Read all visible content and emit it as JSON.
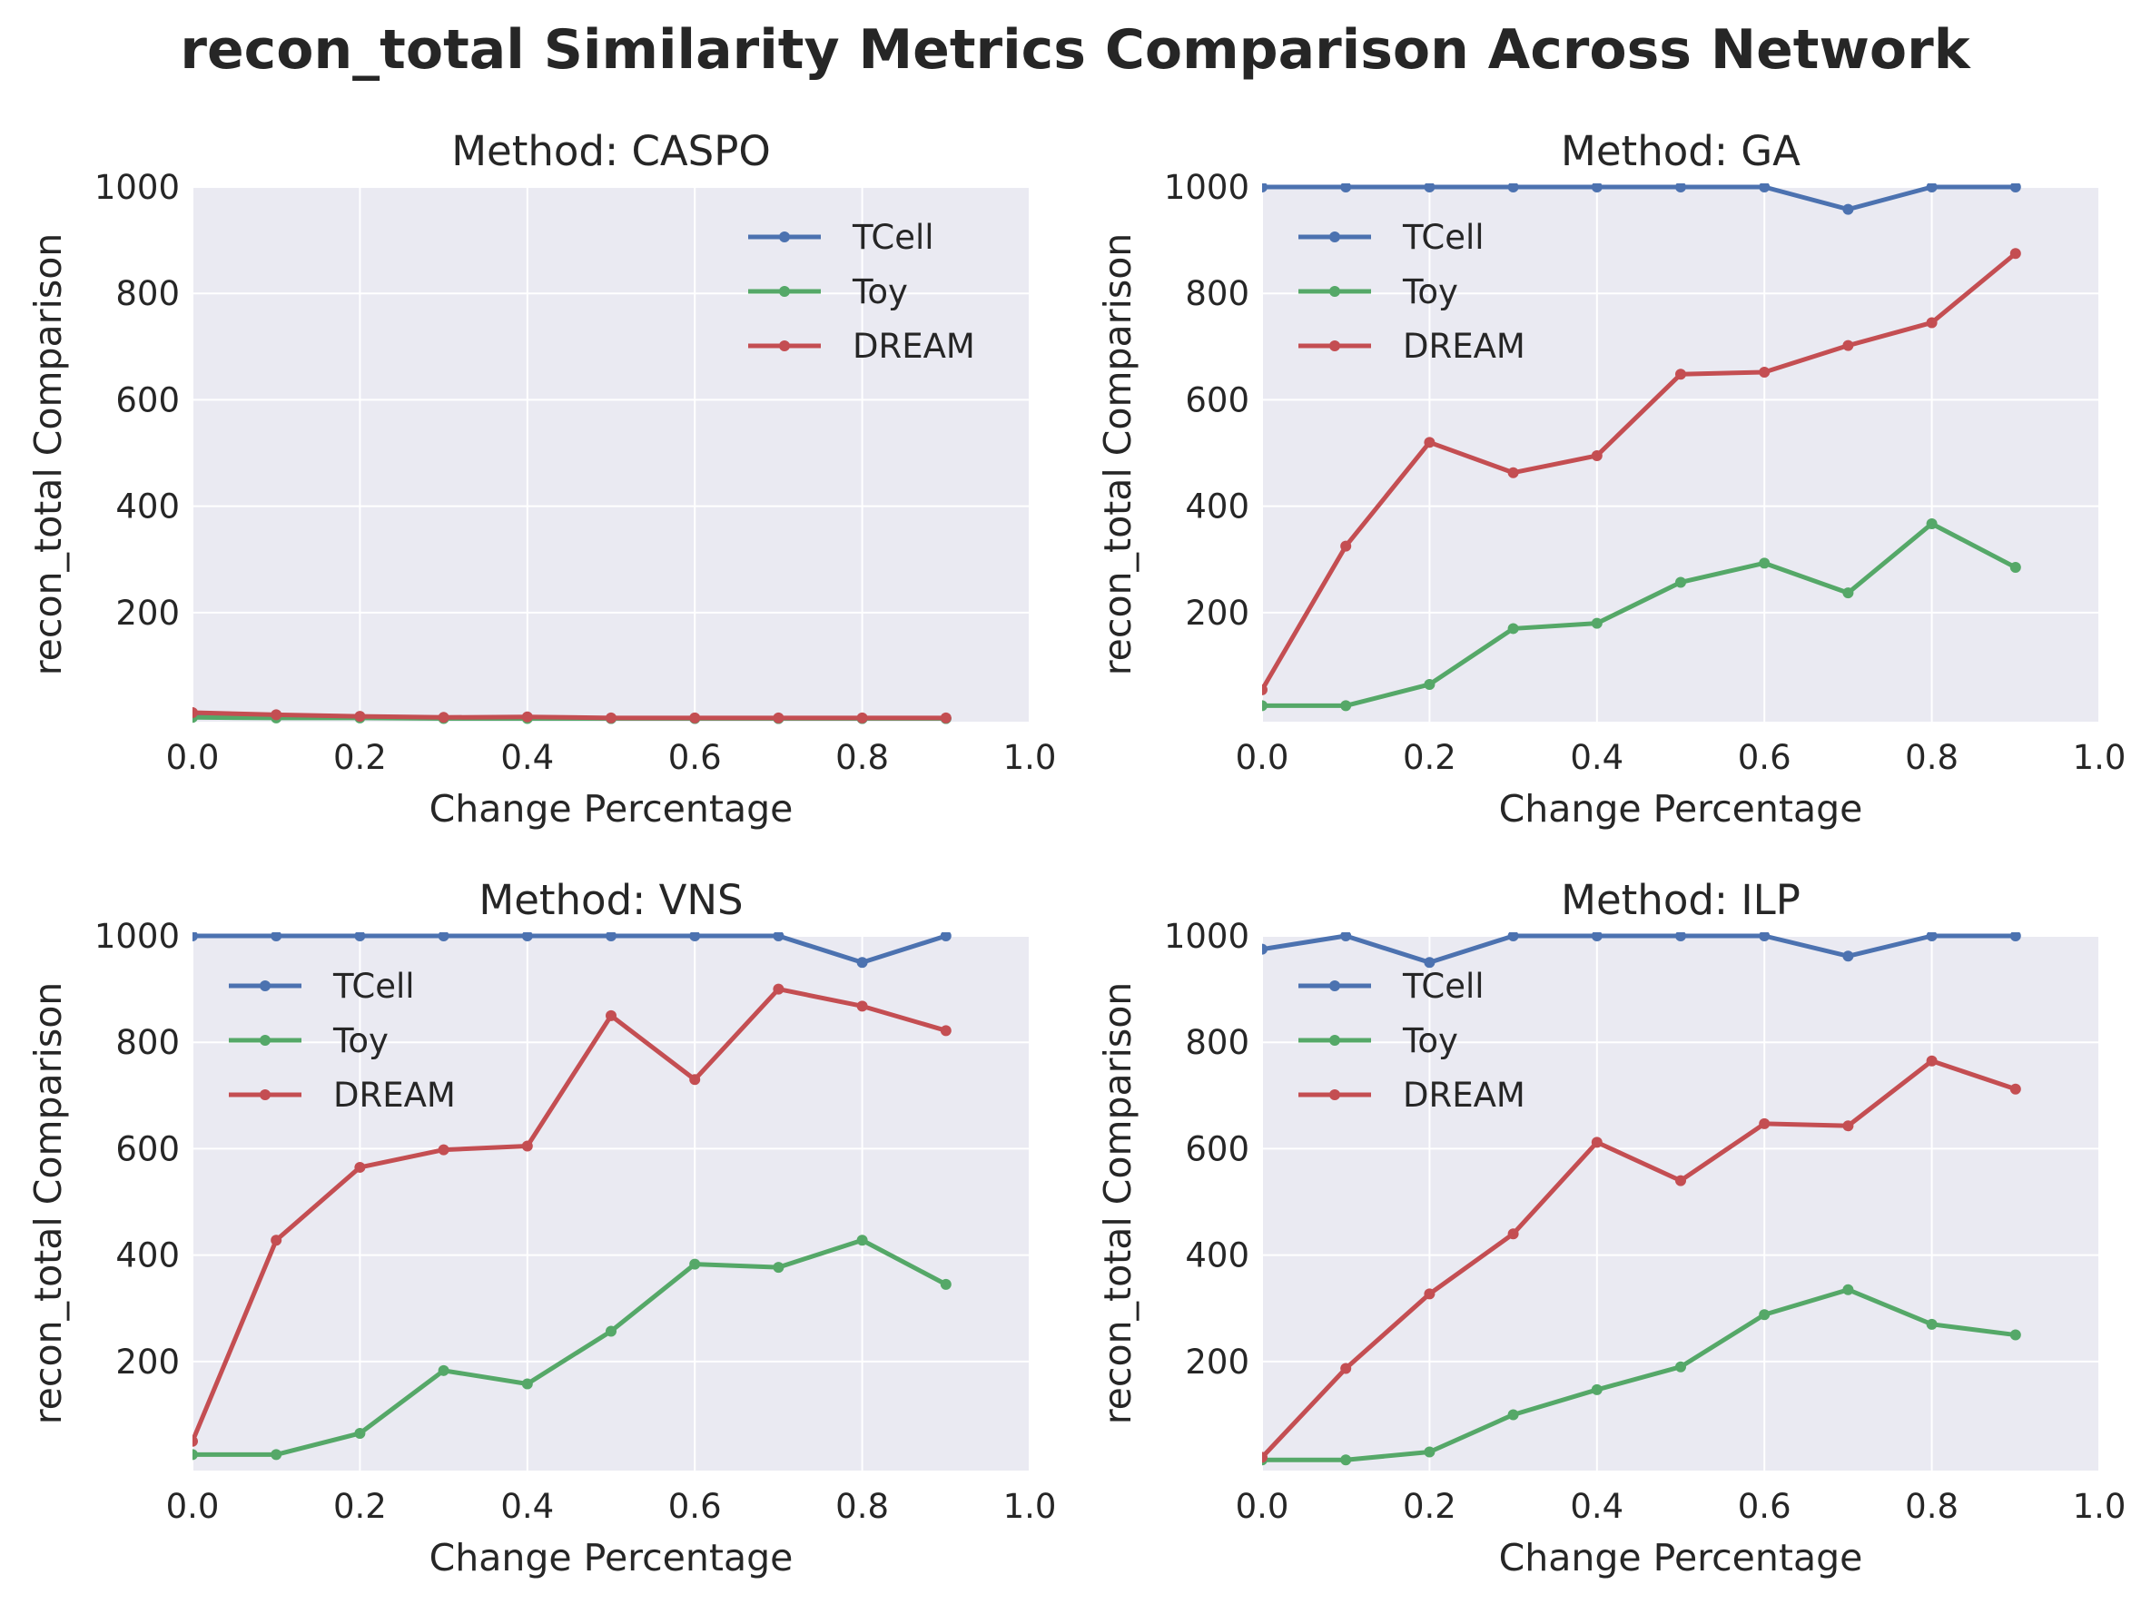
{
  "figure": {
    "title": "recon_total Similarity Metrics Comparison Across Network"
  },
  "colors": {
    "TCell": "#4c72b0",
    "Toy": "#55a868",
    "DREAM": "#c44e52",
    "panel_bg": "#eaeaf2",
    "grid": "#ffffff"
  },
  "chart_data": [
    {
      "type": "line",
      "title": "Method: CASPO",
      "xlabel": "Change Percentage",
      "ylabel": "recon_total Comparison",
      "xlim": [
        0,
        1
      ],
      "ylim": [
        0,
        1000
      ],
      "xticks": [
        "0.0",
        "0.2",
        "0.4",
        "0.6",
        "0.8",
        "1.0"
      ],
      "yticks": [
        "200",
        "400",
        "600",
        "800",
        "1000"
      ],
      "legend": "upper right",
      "x": [
        0.0,
        0.1,
        0.2,
        0.3,
        0.4,
        0.5,
        0.6,
        0.7,
        0.8,
        0.9
      ],
      "series": [
        {
          "name": "TCell",
          "values": [
            5,
            3,
            3,
            2,
            2,
            1,
            1,
            1,
            1,
            1
          ]
        },
        {
          "name": "Toy",
          "values": [
            3,
            2,
            2,
            1,
            1,
            1,
            1,
            1,
            1,
            1
          ]
        },
        {
          "name": "DREAM",
          "values": [
            12,
            8,
            5,
            3,
            4,
            2,
            2,
            2,
            2,
            2
          ]
        }
      ]
    },
    {
      "type": "line",
      "title": "Method: GA",
      "xlabel": "Change Percentage",
      "ylabel": "recon_total Comparison",
      "xlim": [
        0,
        1
      ],
      "ylim": [
        0,
        1000
      ],
      "xticks": [
        "0.0",
        "0.2",
        "0.4",
        "0.6",
        "0.8",
        "1.0"
      ],
      "yticks": [
        "200",
        "400",
        "600",
        "800",
        "1000"
      ],
      "legend": "upper left",
      "x": [
        0.0,
        0.1,
        0.2,
        0.3,
        0.4,
        0.5,
        0.6,
        0.7,
        0.8,
        0.9
      ],
      "series": [
        {
          "name": "TCell",
          "values": [
            1000,
            1000,
            1000,
            1000,
            1000,
            1000,
            1000,
            958,
            1000,
            1000
          ]
        },
        {
          "name": "Toy",
          "values": [
            25,
            25,
            65,
            170,
            180,
            257,
            293,
            237,
            367,
            285
          ]
        },
        {
          "name": "DREAM",
          "values": [
            55,
            325,
            520,
            463,
            495,
            648,
            652,
            702,
            745,
            875
          ]
        }
      ]
    },
    {
      "type": "line",
      "title": "Method: VNS",
      "xlabel": "Change Percentage",
      "ylabel": "recon_total Comparison",
      "xlim": [
        0,
        1
      ],
      "ylim": [
        0,
        1000
      ],
      "xticks": [
        "0.0",
        "0.2",
        "0.4",
        "0.6",
        "0.8",
        "1.0"
      ],
      "yticks": [
        "200",
        "400",
        "600",
        "800",
        "1000"
      ],
      "legend": "upper left",
      "x": [
        0.0,
        0.1,
        0.2,
        0.3,
        0.4,
        0.5,
        0.6,
        0.7,
        0.8,
        0.9
      ],
      "series": [
        {
          "name": "TCell",
          "values": [
            1000,
            1000,
            1000,
            1000,
            1000,
            1000,
            1000,
            1000,
            950,
            1000
          ]
        },
        {
          "name": "Toy",
          "values": [
            25,
            25,
            65,
            183,
            158,
            257,
            383,
            377,
            428,
            345
          ]
        },
        {
          "name": "DREAM",
          "values": [
            50,
            428,
            565,
            598,
            605,
            850,
            730,
            900,
            868,
            822
          ]
        }
      ]
    },
    {
      "type": "line",
      "title": "Method: ILP",
      "xlabel": "Change Percentage",
      "ylabel": "recon_total Comparison",
      "xlim": [
        0,
        1
      ],
      "ylim": [
        0,
        1000
      ],
      "xticks": [
        "0.0",
        "0.2",
        "0.4",
        "0.6",
        "0.8",
        "1.0"
      ],
      "yticks": [
        "200",
        "400",
        "600",
        "800",
        "1000"
      ],
      "legend": "upper left",
      "x": [
        0.0,
        0.1,
        0.2,
        0.3,
        0.4,
        0.5,
        0.6,
        0.7,
        0.8,
        0.9
      ],
      "series": [
        {
          "name": "TCell",
          "values": [
            975,
            1000,
            950,
            1000,
            1000,
            1000,
            1000,
            962,
            1000,
            1000
          ]
        },
        {
          "name": "Toy",
          "values": [
            15,
            15,
            30,
            100,
            147,
            190,
            288,
            335,
            270,
            250
          ]
        },
        {
          "name": "DREAM",
          "values": [
            20,
            187,
            327,
            440,
            612,
            540,
            647,
            643,
            765,
            712
          ]
        }
      ]
    }
  ]
}
